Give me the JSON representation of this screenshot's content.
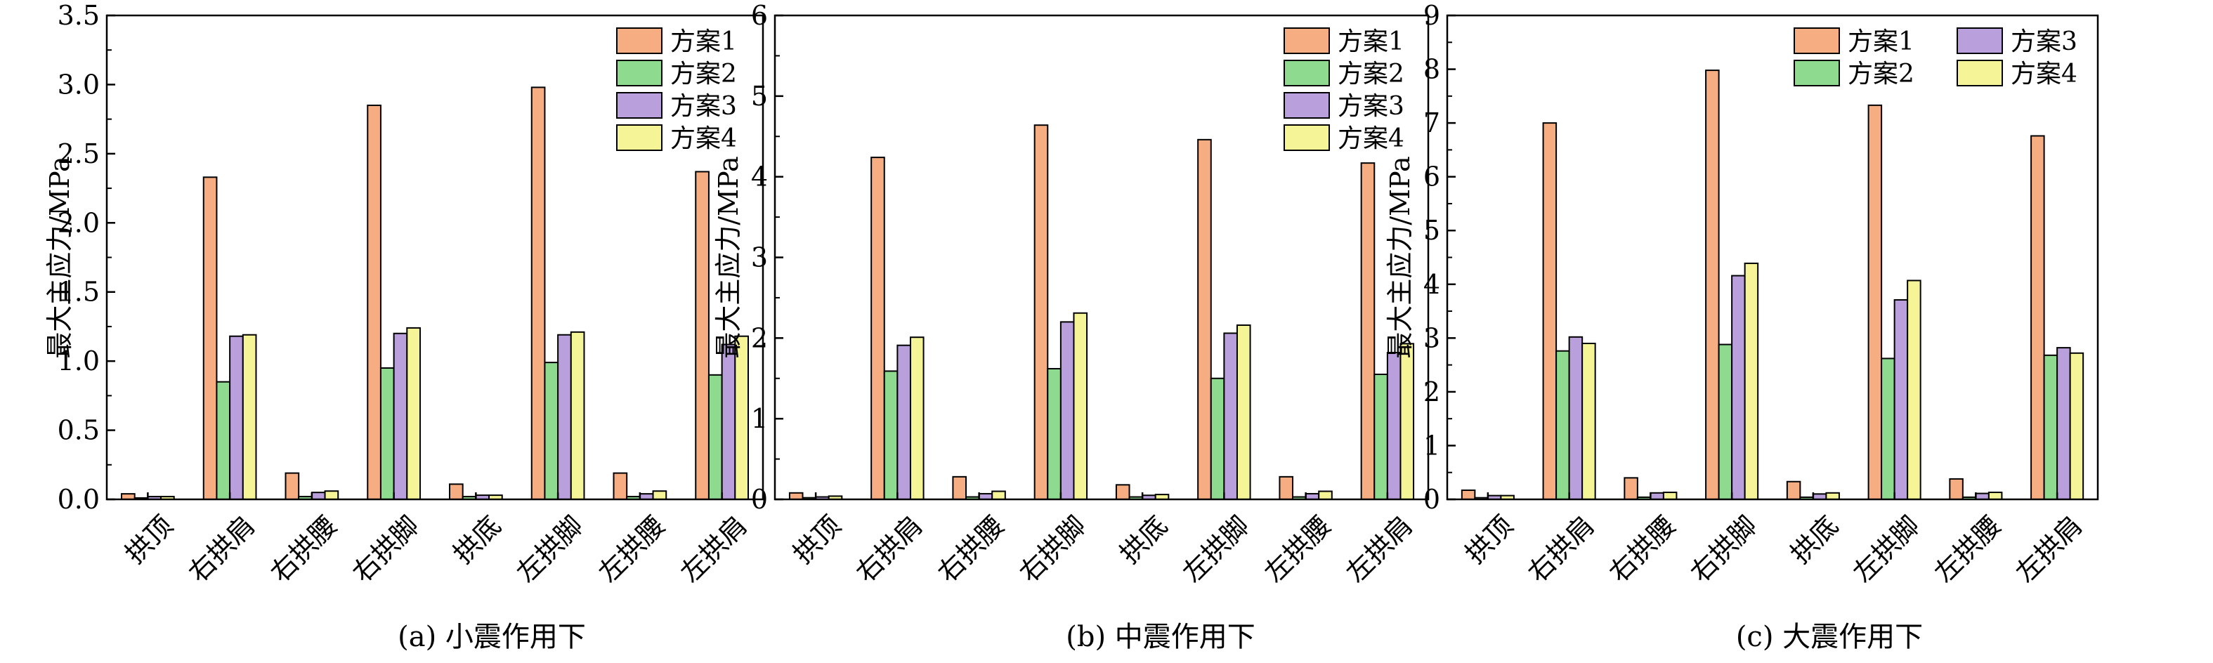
{
  "colors": {
    "方案1": "#f6ad82",
    "方案2": "#8edb90",
    "方案3": "#b9a0dc",
    "方案4": "#f5f597",
    "axis": "#000000"
  },
  "chart_data": [
    {
      "type": "bar",
      "caption": "(a) 小震作用下",
      "ylabel": "最大主应力/MPa",
      "xlabel": "",
      "categories": [
        "拱顶",
        "右拱肩",
        "右拱腰",
        "右拱脚",
        "拱底",
        "左拱脚",
        "左拱腰",
        "左拱肩"
      ],
      "ylim": [
        0,
        3.5
      ],
      "yticks": [
        "0.0",
        "0.5",
        "1.0",
        "1.5",
        "2.0",
        "2.5",
        "3.0",
        "3.5"
      ],
      "legend": "top-right",
      "legend_columns": 1,
      "series": [
        {
          "name": "方案1",
          "values": [
            0.04,
            2.33,
            0.19,
            2.85,
            0.11,
            2.98,
            0.19,
            2.37
          ]
        },
        {
          "name": "方案2",
          "values": [
            0.01,
            0.85,
            0.02,
            0.95,
            0.02,
            0.99,
            0.02,
            0.9
          ]
        },
        {
          "name": "方案3",
          "values": [
            0.02,
            1.18,
            0.05,
            1.2,
            0.03,
            1.19,
            0.04,
            1.12
          ]
        },
        {
          "name": "方案4",
          "values": [
            0.02,
            1.19,
            0.06,
            1.24,
            0.03,
            1.21,
            0.06,
            1.18
          ]
        }
      ]
    },
    {
      "type": "bar",
      "caption": "(b) 中震作用下",
      "ylabel": "最大主应力/MPa",
      "xlabel": "",
      "categories": [
        "拱顶",
        "右拱肩",
        "右拱腰",
        "右拱脚",
        "拱底",
        "左拱脚",
        "左拱腰",
        "左拱肩"
      ],
      "ylim": [
        0,
        6
      ],
      "yticks": [
        "0",
        "1",
        "2",
        "3",
        "4",
        "5",
        "6"
      ],
      "legend": "top-right",
      "legend_columns": 1,
      "series": [
        {
          "name": "方案1",
          "values": [
            0.08,
            4.24,
            0.28,
            4.64,
            0.18,
            4.46,
            0.28,
            4.17
          ]
        },
        {
          "name": "方案2",
          "values": [
            0.02,
            1.59,
            0.03,
            1.62,
            0.03,
            1.5,
            0.03,
            1.55
          ]
        },
        {
          "name": "方案3",
          "values": [
            0.03,
            1.91,
            0.07,
            2.2,
            0.05,
            2.06,
            0.07,
            1.82
          ]
        },
        {
          "name": "方案4",
          "values": [
            0.04,
            2.01,
            0.1,
            2.31,
            0.06,
            2.16,
            0.1,
            1.93
          ]
        }
      ]
    },
    {
      "type": "bar",
      "caption": "(c) 大震作用下",
      "ylabel": "最大主应力/MPa",
      "xlabel": "",
      "categories": [
        "拱顶",
        "右拱肩",
        "右拱腰",
        "右拱脚",
        "拱底",
        "左拱脚",
        "左拱腰",
        "左拱肩"
      ],
      "ylim": [
        0,
        9
      ],
      "yticks": [
        "0",
        "1",
        "2",
        "3",
        "4",
        "5",
        "6",
        "7",
        "8",
        "9"
      ],
      "legend": "top-right",
      "legend_columns": 2,
      "series": [
        {
          "name": "方案1",
          "values": [
            0.17,
            7.0,
            0.4,
            7.98,
            0.33,
            7.33,
            0.38,
            6.76
          ]
        },
        {
          "name": "方案2",
          "values": [
            0.03,
            2.76,
            0.04,
            2.88,
            0.04,
            2.62,
            0.04,
            2.68
          ]
        },
        {
          "name": "方案3",
          "values": [
            0.07,
            3.02,
            0.12,
            4.16,
            0.1,
            3.71,
            0.11,
            2.82
          ]
        },
        {
          "name": "方案4",
          "values": [
            0.07,
            2.9,
            0.13,
            4.39,
            0.12,
            4.07,
            0.13,
            2.72
          ]
        }
      ]
    }
  ]
}
